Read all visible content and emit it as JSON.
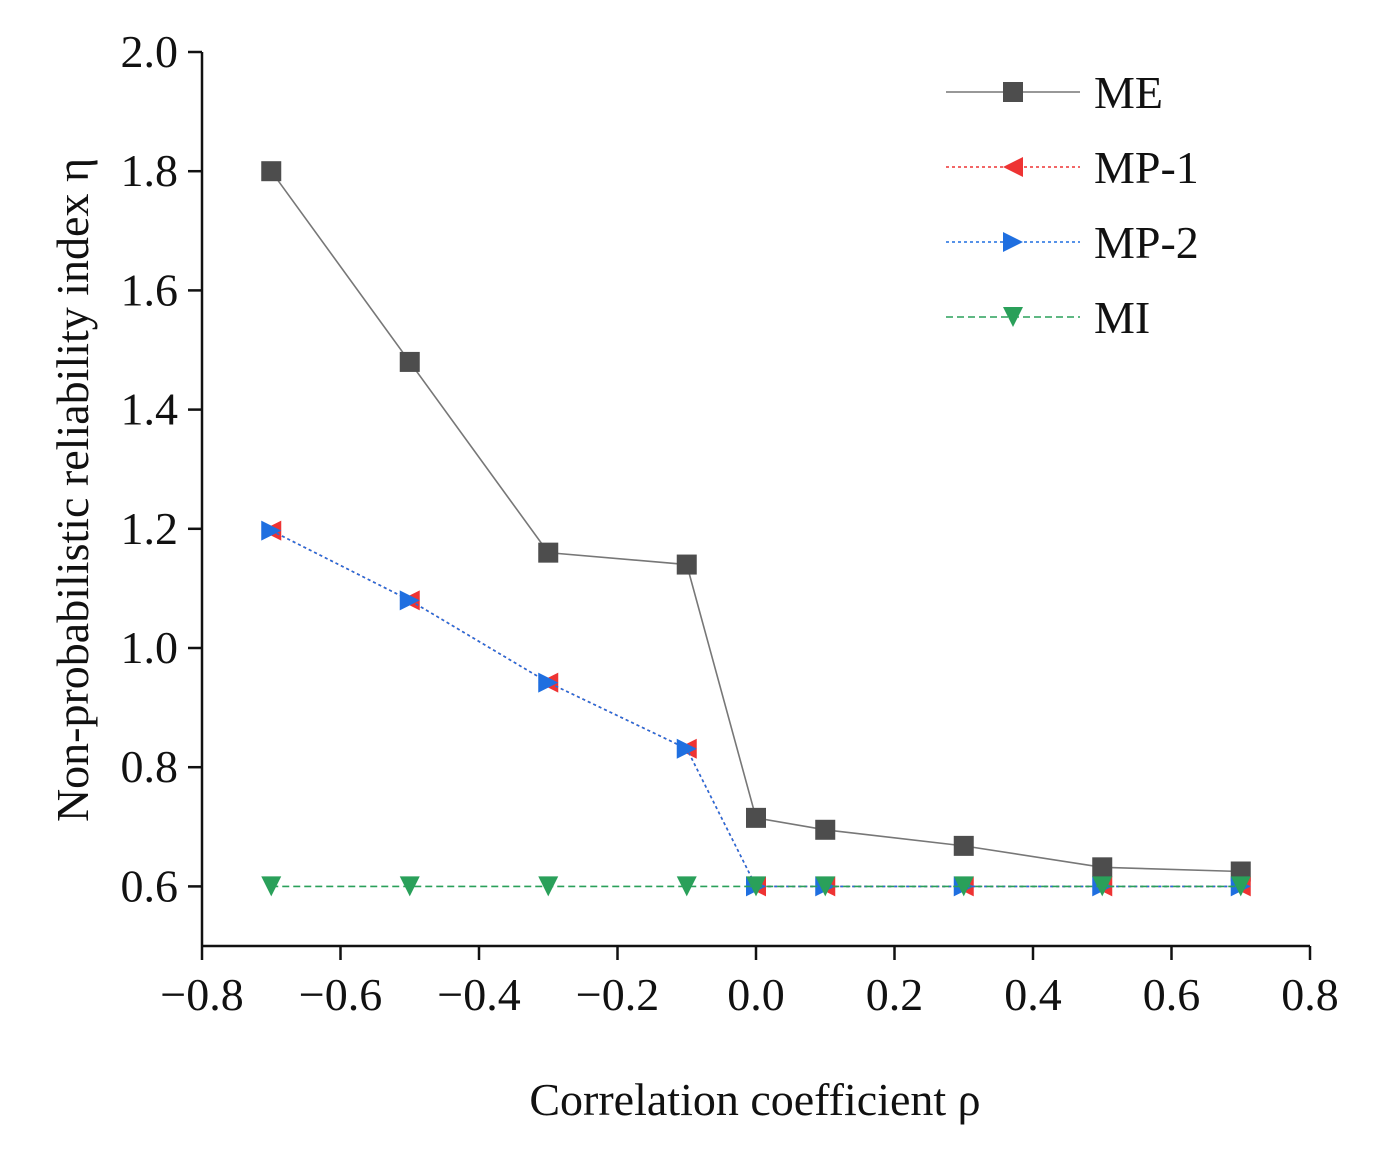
{
  "chart_data": {
    "type": "line",
    "title": "",
    "xlabel": "Correlation coefficient ρ",
    "ylabel": "Non-probabilistic reliability index η",
    "xlim": [
      -0.8,
      0.8
    ],
    "ylim": [
      0.5,
      2.0
    ],
    "xticks": [
      -0.8,
      -0.6,
      -0.4,
      -0.2,
      0.0,
      0.2,
      0.4,
      0.6,
      0.8
    ],
    "xtick_labels": [
      "−0.8",
      "−0.6",
      "−0.4",
      "−0.2",
      "0.0",
      "0.2",
      "0.4",
      "0.6",
      "0.8"
    ],
    "yticks": [
      0.6,
      0.8,
      1.0,
      1.2,
      1.4,
      1.6,
      1.8,
      2.0
    ],
    "ytick_labels": [
      "0.6",
      "0.8",
      "1.0",
      "1.2",
      "1.4",
      "1.6",
      "1.8",
      "2.0"
    ],
    "grid": false,
    "legend_position": "top-right",
    "x": [
      -0.7,
      -0.5,
      -0.3,
      -0.1,
      0.0,
      0.1,
      0.3,
      0.5,
      0.7
    ],
    "series": [
      {
        "name": "ME",
        "values": [
          1.8,
          1.48,
          1.16,
          1.14,
          0.715,
          0.695,
          0.668,
          0.632,
          0.625
        ],
        "color": "#4d4d4d",
        "marker": "square",
        "line": "solid"
      },
      {
        "name": "MP-1",
        "values": [
          1.197,
          1.08,
          0.942,
          0.831,
          0.6,
          0.6,
          0.6,
          0.6,
          0.6
        ],
        "color": "#ee3333",
        "marker": "triangle-left",
        "line": "dotted"
      },
      {
        "name": "MP-2",
        "values": [
          1.197,
          1.08,
          0.942,
          0.831,
          0.6,
          0.6,
          0.6,
          0.6,
          0.6
        ],
        "color": "#1f6fe0",
        "marker": "triangle-right",
        "line": "dotted"
      },
      {
        "name": "MI",
        "values": [
          0.6,
          0.6,
          0.6,
          0.6,
          0.6,
          0.6,
          0.6,
          0.6,
          0.6
        ],
        "color": "#2aa05a",
        "marker": "triangle-down",
        "line": "dashed"
      }
    ]
  }
}
